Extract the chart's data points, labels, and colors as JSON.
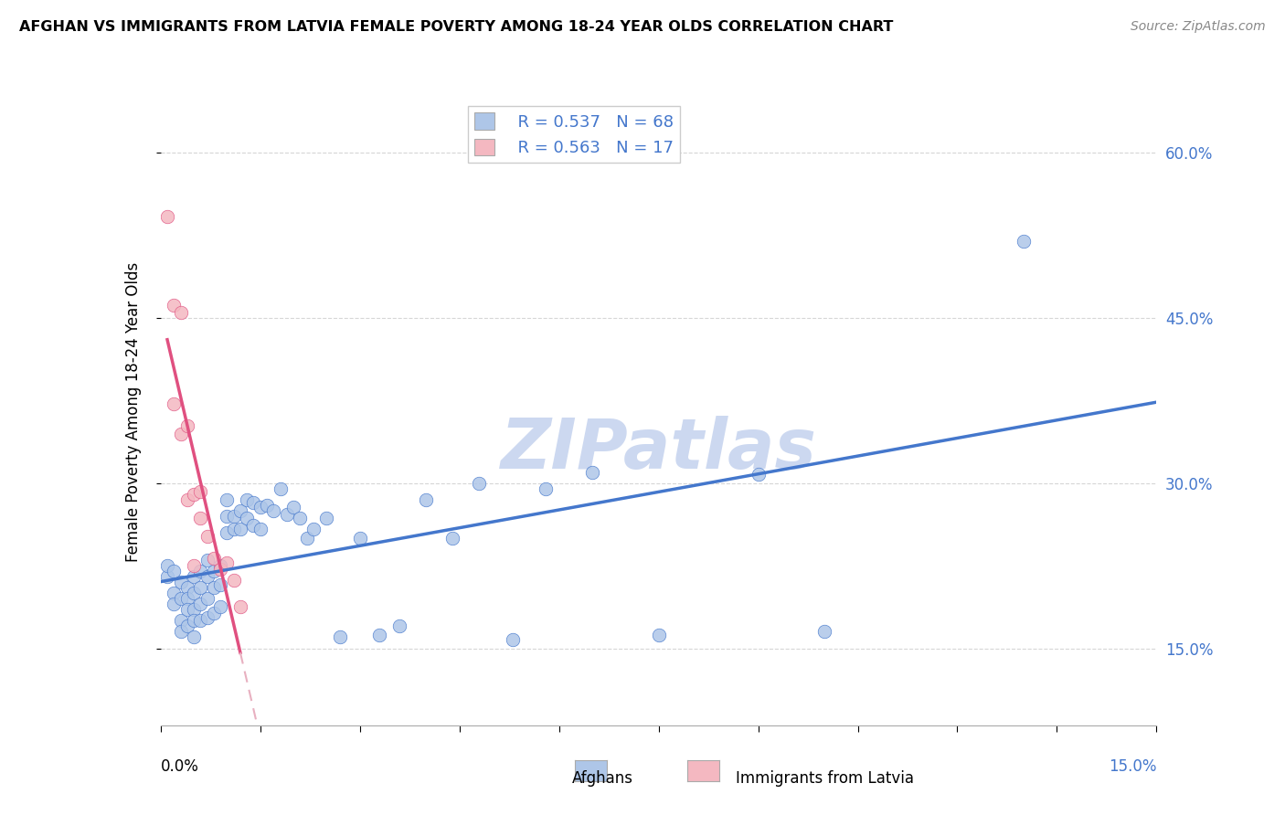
{
  "title": "AFGHAN VS IMMIGRANTS FROM LATVIA FEMALE POVERTY AMONG 18-24 YEAR OLDS CORRELATION CHART",
  "source": "Source: ZipAtlas.com",
  "ylabel": "Female Poverty Among 18-24 Year Olds",
  "yticks": [
    0.15,
    0.3,
    0.45,
    0.6
  ],
  "ytick_labels": [
    "15.0%",
    "30.0%",
    "45.0%",
    "60.0%"
  ],
  "xlim": [
    0.0,
    0.15
  ],
  "ylim": [
    0.08,
    0.65
  ],
  "legend_r_afghan": "R = 0.537",
  "legend_n_afghan": "N = 68",
  "legend_r_latvia": "R = 0.563",
  "legend_n_latvia": "N = 17",
  "afghan_color": "#aec6e8",
  "latvia_color": "#f4b8c1",
  "trendline_afghan_color": "#4477cc",
  "trendline_latvia_color": "#e05080",
  "trendline_latvia_dashed_color": "#e8b0c0",
  "watermark": "ZIPatlas",
  "watermark_color": "#ccd8f0",
  "background_color": "#ffffff",
  "grid_color": "#cccccc",
  "afghan_x": [
    0.001,
    0.001,
    0.002,
    0.002,
    0.002,
    0.003,
    0.003,
    0.003,
    0.003,
    0.004,
    0.004,
    0.004,
    0.004,
    0.005,
    0.005,
    0.005,
    0.005,
    0.005,
    0.006,
    0.006,
    0.006,
    0.006,
    0.007,
    0.007,
    0.007,
    0.007,
    0.008,
    0.008,
    0.008,
    0.009,
    0.009,
    0.009,
    0.01,
    0.01,
    0.01,
    0.011,
    0.011,
    0.012,
    0.012,
    0.013,
    0.013,
    0.014,
    0.014,
    0.015,
    0.015,
    0.016,
    0.017,
    0.018,
    0.019,
    0.02,
    0.021,
    0.022,
    0.023,
    0.025,
    0.027,
    0.03,
    0.033,
    0.036,
    0.04,
    0.044,
    0.048,
    0.053,
    0.058,
    0.065,
    0.075,
    0.09,
    0.1,
    0.13
  ],
  "afghan_y": [
    0.215,
    0.225,
    0.22,
    0.2,
    0.19,
    0.21,
    0.195,
    0.175,
    0.165,
    0.205,
    0.195,
    0.185,
    0.17,
    0.215,
    0.2,
    0.185,
    0.175,
    0.16,
    0.22,
    0.205,
    0.19,
    0.175,
    0.23,
    0.215,
    0.195,
    0.178,
    0.22,
    0.205,
    0.182,
    0.225,
    0.208,
    0.188,
    0.255,
    0.27,
    0.285,
    0.27,
    0.258,
    0.275,
    0.258,
    0.285,
    0.268,
    0.282,
    0.262,
    0.278,
    0.258,
    0.28,
    0.275,
    0.295,
    0.272,
    0.278,
    0.268,
    0.25,
    0.258,
    0.268,
    0.16,
    0.25,
    0.162,
    0.17,
    0.285,
    0.25,
    0.3,
    0.158,
    0.295,
    0.31,
    0.162,
    0.308,
    0.165,
    0.52
  ],
  "latvia_x": [
    0.001,
    0.002,
    0.002,
    0.003,
    0.003,
    0.004,
    0.004,
    0.005,
    0.005,
    0.006,
    0.006,
    0.007,
    0.008,
    0.009,
    0.01,
    0.011,
    0.012
  ],
  "latvia_y": [
    0.542,
    0.462,
    0.372,
    0.455,
    0.345,
    0.352,
    0.285,
    0.29,
    0.225,
    0.292,
    0.268,
    0.252,
    0.232,
    0.222,
    0.228,
    0.212,
    0.188
  ]
}
